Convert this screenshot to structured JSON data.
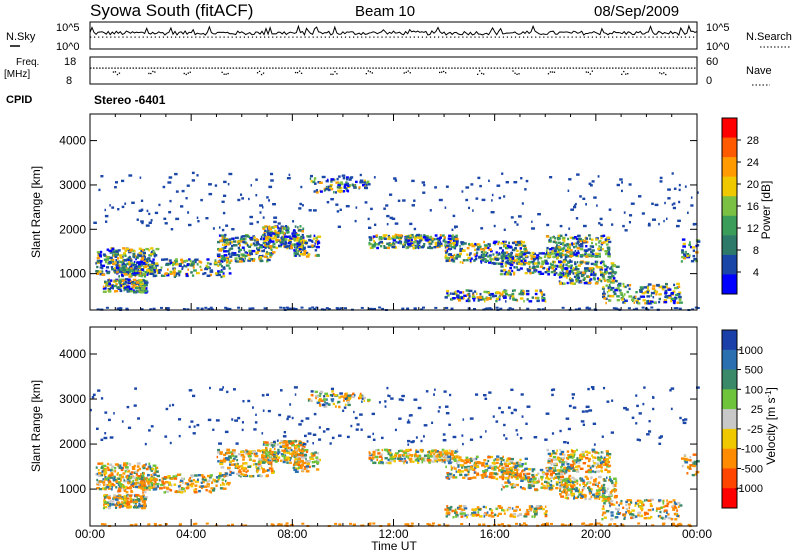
{
  "header": {
    "title": "Syowa South (fitACF)",
    "beam": "Beam 10",
    "date": "08/Sep/2009"
  },
  "noise_panel": {
    "left_label": "N.Sky",
    "right_label": "N.Search",
    "left_ticks": [
      "10^5",
      "10^0"
    ],
    "right_ticks": [
      "10^5",
      "10^0"
    ]
  },
  "freq_panel": {
    "left_label_1": "Freq.",
    "left_label_2": "[MHz]",
    "right_label": "Nave",
    "left_ticks": [
      "18",
      "8"
    ],
    "right_ticks": [
      "60",
      "0"
    ]
  },
  "cpid": {
    "label": "CPID",
    "value": "Stereo -6401"
  },
  "chart_data": [
    {
      "type": "heatmap",
      "title": "",
      "ylabel": "Slant Range [km]",
      "xlabel": "",
      "y_ticks": [
        "4000",
        "3000",
        "2000",
        "1000"
      ],
      "ylim": [
        180,
        4600
      ],
      "x_ticks": [
        "00:00",
        "04:00",
        "08:00",
        "12:00",
        "16:00",
        "20:00",
        "00:00"
      ],
      "xlim_hours": [
        0,
        24
      ],
      "colorbar": {
        "label": "Power [dB]",
        "ticks": [
          "28",
          "24",
          "20",
          "16",
          "12",
          "8",
          "4"
        ],
        "range": [
          0,
          30
        ],
        "colors": [
          "#ff0000",
          "#ff5a00",
          "#ff9a00",
          "#f0c800",
          "#7ac143",
          "#3a9e5a",
          "#2e7a6a",
          "#1a46a8",
          "#0000ff"
        ]
      }
    },
    {
      "type": "heatmap",
      "title": "",
      "ylabel": "Slant Range [km]",
      "xlabel": "Time UT",
      "y_ticks": [
        "4000",
        "3000",
        "2000",
        "1000"
      ],
      "ylim": [
        180,
        4600
      ],
      "x_ticks": [
        "00:00",
        "04:00",
        "08:00",
        "12:00",
        "16:00",
        "20:00",
        "00:00"
      ],
      "xlim_hours": [
        0,
        24
      ],
      "colorbar": {
        "label": "Velocity [m s",
        "label_sup": "-1",
        "label_close": "]",
        "ticks": [
          "1000",
          "500",
          "100",
          "25",
          "-25",
          "-100",
          "-500",
          "-1000"
        ],
        "range": [
          -1000,
          1000
        ],
        "colors": [
          "#1b3fa8",
          "#2a6fb0",
          "#3a8a6a",
          "#6ec43a",
          "#c8c8c8",
          "#f0c800",
          "#ff8c00",
          "#ff4500",
          "#ff0000"
        ]
      }
    }
  ]
}
